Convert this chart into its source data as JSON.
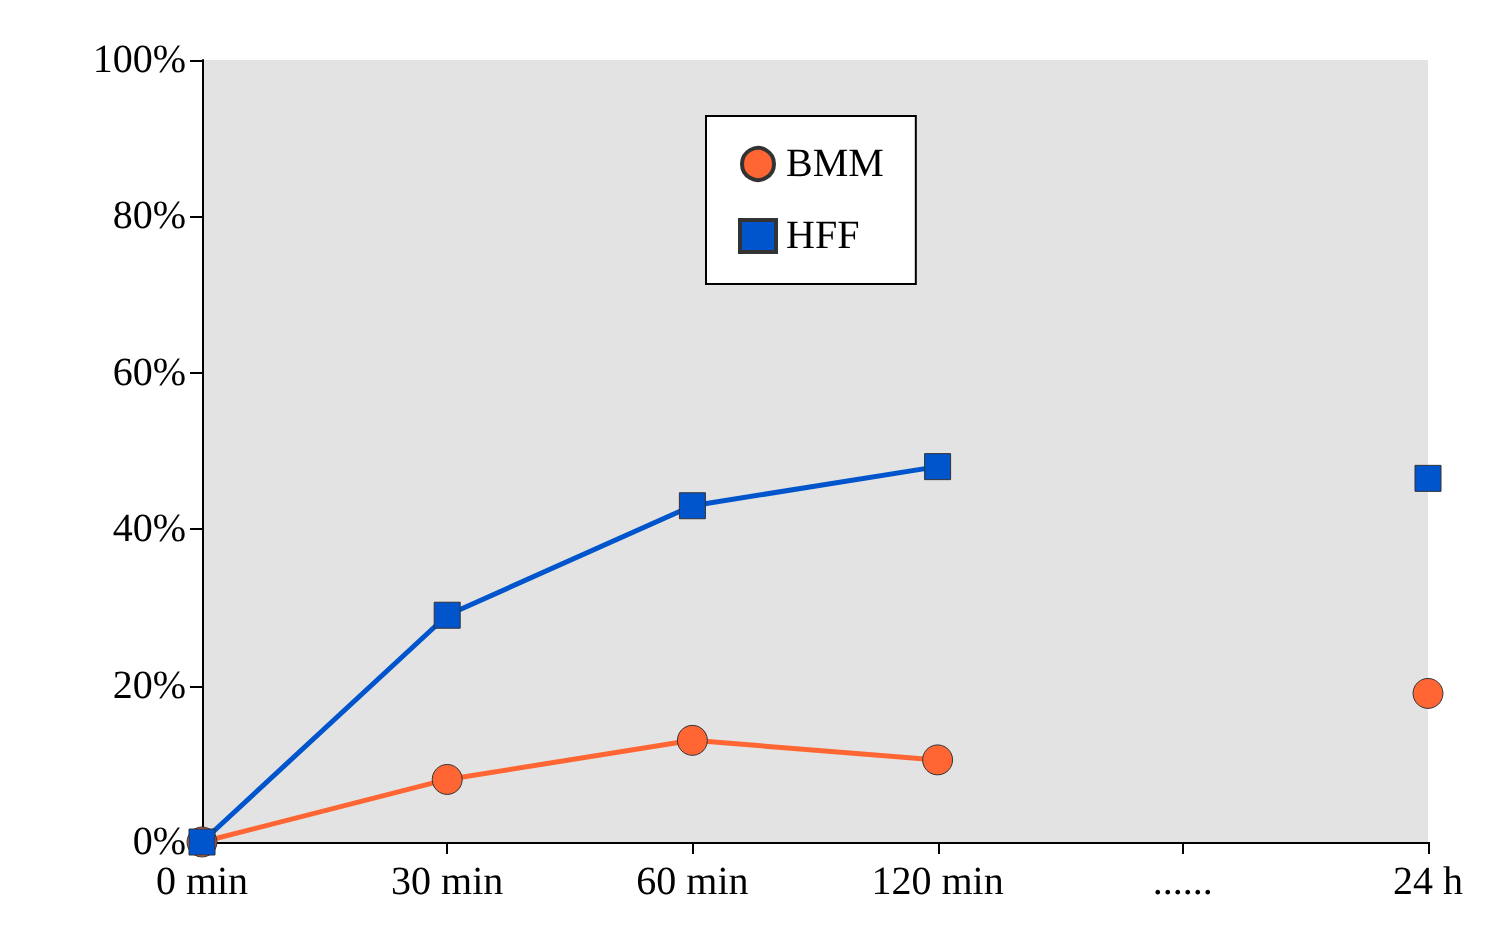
{
  "chart_data": {
    "type": "line",
    "categories": [
      "0 min",
      "30 min",
      "60 min",
      "120 min",
      "......",
      "24 h"
    ],
    "series": [
      {
        "name": "BMM",
        "color": "#ff6633",
        "marker": "circle",
        "values": [
          0,
          8,
          13,
          10.5,
          null,
          19
        ]
      },
      {
        "name": "HFF",
        "color": "#0055cc",
        "marker": "square",
        "values": [
          0,
          29,
          43,
          48,
          null,
          46.5
        ]
      }
    ],
    "ylim": [
      0,
      100
    ],
    "yticks": [
      {
        "value": 0,
        "label": "0%"
      },
      {
        "value": 20,
        "label": "20%"
      },
      {
        "value": 40,
        "label": "40%"
      },
      {
        "value": 60,
        "label": "60%"
      },
      {
        "value": 80,
        "label": "80%"
      },
      {
        "value": 100,
        "label": "100%"
      }
    ],
    "grid": false,
    "legend": "top",
    "line_style": "solid"
  }
}
